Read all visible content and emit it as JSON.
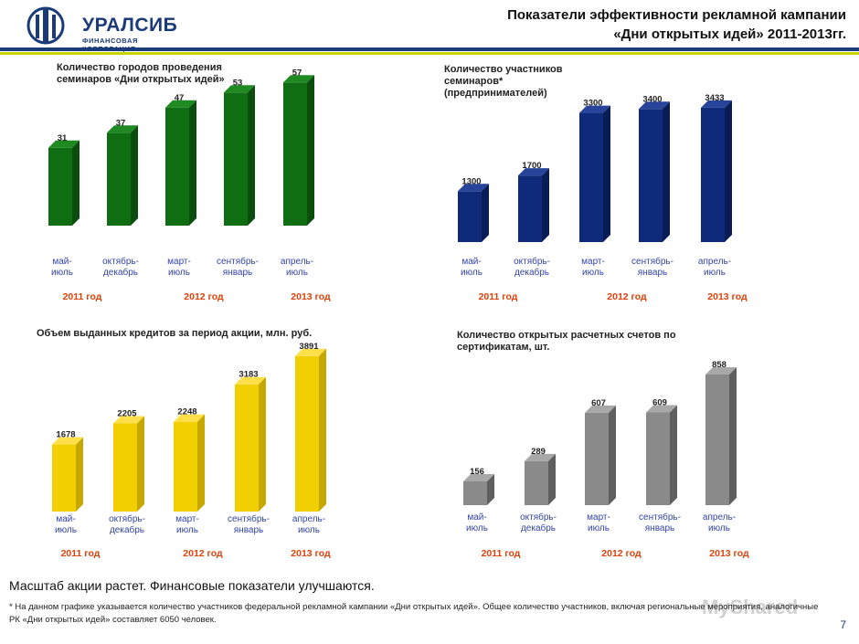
{
  "header": {
    "logo_text": "УРАЛСИБ",
    "logo_sub": "ФИНАНСОВАЯ КОРПОРАЦИЯ",
    "title_line1": "Показатели эффективности рекламной кампании",
    "title_line2": "«Дни открытых идей» 2011-2013гг."
  },
  "colors": {
    "brand": "#1b3a7a",
    "accent": "#c8d400",
    "year": "#e0400a",
    "period": "#3344aa"
  },
  "chart_data": [
    {
      "type": "bar",
      "title": "Количество городов проведения семинаров «Дни открытых идей»",
      "categories": [
        "май-\nиюль",
        "октябрь-\nдекабрь",
        "март-\nиюль",
        "сентябрь-\nянварь",
        "апрель-\nиюль"
      ],
      "values": [
        31,
        37,
        47,
        53,
        57
      ],
      "value_labels": [
        "31",
        "37",
        "47",
        "53",
        "57"
      ],
      "years": [
        "2011 год",
        "2012 год",
        "2013 год"
      ],
      "ylim": [
        0,
        60
      ],
      "color": "green"
    },
    {
      "type": "bar",
      "title": "Количество участников семинаров* (предпринимателей)",
      "categories": [
        "май-\nиюль",
        "октябрь-\nдекабрь",
        "март-\nиюль",
        "сентябрь-\nянварь",
        "апрель-\nиюль"
      ],
      "values": [
        1300,
        1700,
        3300,
        3400,
        3433
      ],
      "value_labels": [
        "1300",
        "1700",
        "3300",
        "3400",
        "3433"
      ],
      "years": [
        "2011 год",
        "2012 год",
        "2013 год"
      ],
      "ylim": [
        0,
        3500
      ],
      "color": "navy"
    },
    {
      "type": "bar",
      "title": "Объем выданных кредитов за период акции, млн. руб.",
      "categories": [
        "май-\nиюль",
        "октябрь-\nдекабрь",
        "март-\nиюль",
        "сентябрь-\nянварь",
        "апрель-\nиюль"
      ],
      "values": [
        1678,
        2205,
        2248,
        3183,
        3891
      ],
      "value_labels": [
        "1678",
        "2205",
        "2248",
        "3183",
        "3891"
      ],
      "years": [
        "2011 год",
        "2012 год",
        "2013 год"
      ],
      "ylim": [
        0,
        4000
      ],
      "color": "yellow"
    },
    {
      "type": "bar",
      "title": "Количество открытых расчетных счетов по сертификатам, шт.",
      "categories": [
        "май-\nиюль",
        "октябрь-\nдекабрь",
        "март-\nиюль",
        "сентябрь-\nянварь",
        "апрель-\nиюль"
      ],
      "values": [
        156,
        289,
        607,
        609,
        858
      ],
      "value_labels": [
        "156",
        "289",
        "607",
        "609",
        "858"
      ],
      "years": [
        "2011 год",
        "2012 год",
        "2013 год"
      ],
      "ylim": [
        0,
        900
      ],
      "color": "gray"
    }
  ],
  "footer": {
    "main": "Масштаб акции растет. Финансовые показатели улучшаются.",
    "note": "* На данном графике указывается количество участников федеральной рекламной кампании «Дни открытых идей». Общее количество участников, включая региональные мероприятия, аналогичные РК «Дни открытых идей» составляет 6050 человек.",
    "page": "7"
  }
}
